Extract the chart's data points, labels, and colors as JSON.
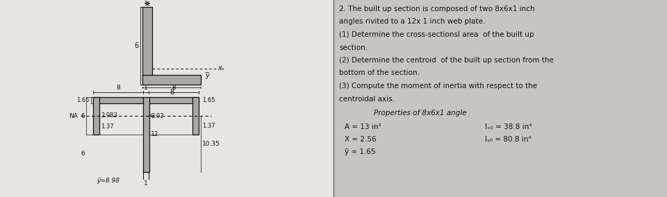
{
  "bg_color": "#c8c4c0",
  "panel_bg": "#d4d0cc",
  "text_color": "#111111",
  "title_text": "2. The built up section is composed of two 8x6x1 inch\nangles rivited to a 12x 1 inch web plate.\n(1) Determine the cross-sectionsl area  of the built up\nsection.\n(2) Determine the centroid  of the built up section from the\nbottom of the section.\n(3) Compute the moment of inertia with respect to the\ncentroidal axis.",
  "properties_title": "Properties of 8x6x1 angle",
  "prop_A": "A = 13 in²",
  "prop_x": "Χ = 2.56",
  "prop_y": "ȳ = 1.65",
  "prop_Ixo": "lₓ₀ = 38.8 in⁴",
  "prop_Iyo": "lᵧ₀ = 80.8 in⁴",
  "angle_fill": "#aaa8a5",
  "line_color": "#111111",
  "white_bg": "#e8e5e0"
}
